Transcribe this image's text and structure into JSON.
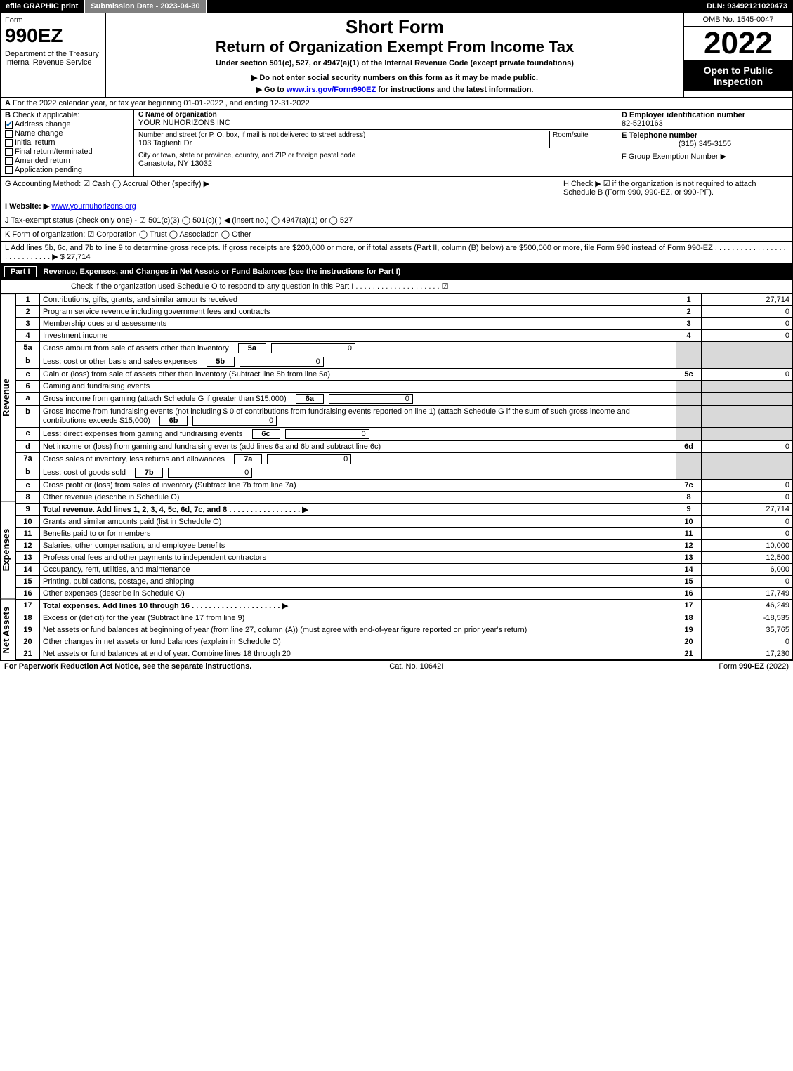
{
  "topbar": {
    "efile": "efile GRAPHIC print",
    "subdate": "Submission Date - 2023-04-30",
    "dln": "DLN: 93492121020473"
  },
  "header": {
    "form_word": "Form",
    "form_no": "990EZ",
    "dept": "Department of the Treasury\nInternal Revenue Service",
    "title1": "Short Form",
    "title2": "Return of Organization Exempt From Income Tax",
    "under": "Under section 501(c), 527, or 4947(a)(1) of the Internal Revenue Code (except private foundations)",
    "note1": "▶ Do not enter social security numbers on this form as it may be made public.",
    "note2_a": "▶ Go to ",
    "note2_link": "www.irs.gov/Form990EZ",
    "note2_b": " for instructions and the latest information.",
    "omb": "OMB No. 1545-0047",
    "year": "2022",
    "open": "Open to Public Inspection"
  },
  "A": "For the 2022 calendar year, or tax year beginning 01-01-2022 , and ending 12-31-2022",
  "B": {
    "label": "Check if applicable:",
    "items": [
      "Address change",
      "Name change",
      "Initial return",
      "Final return/terminated",
      "Amended return",
      "Application pending"
    ],
    "checked": 0
  },
  "C": {
    "name_lbl": "C Name of organization",
    "name": "YOUR NUHORIZONS INC",
    "addr_lbl": "Number and street (or P. O. box, if mail is not delivered to street address)",
    "room_lbl": "Room/suite",
    "addr": "103 Taglienti Dr",
    "city_lbl": "City or town, state or province, country, and ZIP or foreign postal code",
    "city": "Canastota, NY  13032"
  },
  "D": {
    "label": "D Employer identification number",
    "value": "82-5210163"
  },
  "E": {
    "label": "E Telephone number",
    "value": "(315) 345-3155"
  },
  "F": {
    "label": "F Group Exemption Number  ▶",
    "value": ""
  },
  "G": "G Accounting Method:   ☑ Cash   ◯ Accrual   Other (specify) ▶",
  "H": "H  Check ▶ ☑ if the organization is not required to attach Schedule B (Form 990, 990-EZ, or 990-PF).",
  "I": {
    "label": "I Website: ▶",
    "value": "www.yournuhorizons.org"
  },
  "J": "J Tax-exempt status (check only one) - ☑ 501(c)(3) ◯ 501(c)(  ) ◀ (insert no.) ◯ 4947(a)(1) or ◯ 527",
  "K": "K Form of organization:  ☑ Corporation  ◯ Trust  ◯ Association  ◯ Other",
  "L": {
    "text": "L Add lines 5b, 6c, and 7b to line 9 to determine gross receipts. If gross receipts are $200,000 or more, or if total assets (Part II, column (B) below) are $500,000 or more, file Form 990 instead of Form 990-EZ . . . . . . . . . . . . . . . . . . . . . . . . . . . . ▶ $",
    "value": "27,714"
  },
  "part1": {
    "title": "Part I",
    "heading": "Revenue, Expenses, and Changes in Net Assets or Fund Balances (see the instructions for Part I)",
    "checknote": "Check if the organization used Schedule O to respond to any question in this Part I . . . . . . . . . . . . . . . . . . . . ☑"
  },
  "sidebars": {
    "rev": "Revenue",
    "exp": "Expenses",
    "na": "Net Assets"
  },
  "lines": {
    "1": {
      "n": "1",
      "t": "Contributions, gifts, grants, and similar amounts received",
      "r": "1",
      "v": "27,714"
    },
    "2": {
      "n": "2",
      "t": "Program service revenue including government fees and contracts",
      "r": "2",
      "v": "0"
    },
    "3": {
      "n": "3",
      "t": "Membership dues and assessments",
      "r": "3",
      "v": "0"
    },
    "4": {
      "n": "4",
      "t": "Investment income",
      "r": "4",
      "v": "0"
    },
    "5a": {
      "n": "5a",
      "t": "Gross amount from sale of assets other than inventory",
      "sub": "5a",
      "sv": "0"
    },
    "5b": {
      "n": "b",
      "t": "Less: cost or other basis and sales expenses",
      "sub": "5b",
      "sv": "0"
    },
    "5c": {
      "n": "c",
      "t": "Gain or (loss) from sale of assets other than inventory (Subtract line 5b from line 5a)",
      "r": "5c",
      "v": "0"
    },
    "6": {
      "n": "6",
      "t": "Gaming and fundraising events"
    },
    "6a": {
      "n": "a",
      "t": "Gross income from gaming (attach Schedule G if greater than $15,000)",
      "sub": "6a",
      "sv": "0"
    },
    "6b": {
      "n": "b",
      "t": "Gross income from fundraising events (not including $ 0   of contributions from fundraising events reported on line 1) (attach Schedule G if the sum of such gross income and contributions exceeds $15,000)",
      "sub": "6b",
      "sv": "0"
    },
    "6c": {
      "n": "c",
      "t": "Less: direct expenses from gaming and fundraising events",
      "sub": "6c",
      "sv": "0"
    },
    "6d": {
      "n": "d",
      "t": "Net income or (loss) from gaming and fundraising events (add lines 6a and 6b and subtract line 6c)",
      "r": "6d",
      "v": "0"
    },
    "7a": {
      "n": "7a",
      "t": "Gross sales of inventory, less returns and allowances",
      "sub": "7a",
      "sv": "0"
    },
    "7b": {
      "n": "b",
      "t": "Less: cost of goods sold",
      "sub": "7b",
      "sv": "0"
    },
    "7c": {
      "n": "c",
      "t": "Gross profit or (loss) from sales of inventory (Subtract line 7b from line 7a)",
      "r": "7c",
      "v": "0"
    },
    "8": {
      "n": "8",
      "t": "Other revenue (describe in Schedule O)",
      "r": "8",
      "v": "0"
    },
    "9": {
      "n": "9",
      "t": "Total revenue. Add lines 1, 2, 3, 4, 5c, 6d, 7c, and 8   . . . . . . . . . . . . . . . . . ▶",
      "r": "9",
      "v": "27,714",
      "bold": true
    },
    "10": {
      "n": "10",
      "t": "Grants and similar amounts paid (list in Schedule O)",
      "r": "10",
      "v": "0"
    },
    "11": {
      "n": "11",
      "t": "Benefits paid to or for members",
      "r": "11",
      "v": "0"
    },
    "12": {
      "n": "12",
      "t": "Salaries, other compensation, and employee benefits",
      "r": "12",
      "v": "10,000"
    },
    "13": {
      "n": "13",
      "t": "Professional fees and other payments to independent contractors",
      "r": "13",
      "v": "12,500"
    },
    "14": {
      "n": "14",
      "t": "Occupancy, rent, utilities, and maintenance",
      "r": "14",
      "v": "6,000"
    },
    "15": {
      "n": "15",
      "t": "Printing, publications, postage, and shipping",
      "r": "15",
      "v": "0"
    },
    "16": {
      "n": "16",
      "t": "Other expenses (describe in Schedule O)",
      "r": "16",
      "v": "17,749"
    },
    "17": {
      "n": "17",
      "t": "Total expenses. Add lines 10 through 16   . . . . . . . . . . . . . . . . . . . . . ▶",
      "r": "17",
      "v": "46,249",
      "bold": true
    },
    "18": {
      "n": "18",
      "t": "Excess or (deficit) for the year (Subtract line 17 from line 9)",
      "r": "18",
      "v": "-18,535"
    },
    "19": {
      "n": "19",
      "t": "Net assets or fund balances at beginning of year (from line 27, column (A)) (must agree with end-of-year figure reported on prior year's return)",
      "r": "19",
      "v": "35,765"
    },
    "20": {
      "n": "20",
      "t": "Other changes in net assets or fund balances (explain in Schedule O)",
      "r": "20",
      "v": "0"
    },
    "21": {
      "n": "21",
      "t": "Net assets or fund balances at end of year. Combine lines 18 through 20",
      "r": "21",
      "v": "17,230"
    }
  },
  "footer": {
    "left": "For Paperwork Reduction Act Notice, see the separate instructions.",
    "mid": "Cat. No. 10642I",
    "right": "Form 990-EZ (2022)"
  }
}
